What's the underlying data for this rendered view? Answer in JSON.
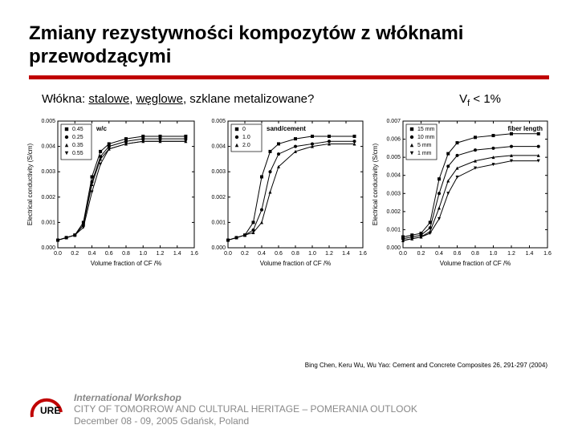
{
  "title_line1": "Zmiany rezystywności kompozytów z włóknami",
  "title_line2": "przewodzącymi",
  "fibers_prefix": "Włókna: ",
  "fibers_u1": "stalowe",
  "fibers_sep": ", ",
  "fibers_u2": "węglowe",
  "fibers_rest": ", szklane metalizowane?",
  "vf_label": "V",
  "vf_sub": "f",
  "vf_rest": " < 1%",
  "ylabel": "Electrical conductivity (S/cm)",
  "xlabel": "Volume fraction of CF /%",
  "chart1": {
    "inner_label": "w/c",
    "legend": [
      {
        "sym": "square",
        "label": "0.45"
      },
      {
        "sym": "circle",
        "label": "0.25"
      },
      {
        "sym": "triangle",
        "label": "0.35"
      },
      {
        "sym": "invtri",
        "label": "0.55"
      }
    ],
    "yticks": [
      "0.000",
      "0.001",
      "0.002",
      "0.003",
      "0.004",
      "0.005"
    ],
    "ymax": 0.005,
    "xticks": [
      "0.0",
      "0.2",
      "0.4",
      "0.6",
      "0.8",
      "1.0",
      "1.2",
      "1.4",
      "1.6"
    ],
    "xmax": 1.6,
    "series": [
      {
        "sym": "square",
        "pts": [
          [
            0.0,
            0.0003
          ],
          [
            0.1,
            0.0004
          ],
          [
            0.2,
            0.0005
          ],
          [
            0.3,
            0.001
          ],
          [
            0.4,
            0.0028
          ],
          [
            0.5,
            0.0038
          ],
          [
            0.6,
            0.0041
          ],
          [
            0.8,
            0.0043
          ],
          [
            1.0,
            0.0044
          ],
          [
            1.2,
            0.0044
          ],
          [
            1.5,
            0.0044
          ]
        ]
      },
      {
        "sym": "circle",
        "pts": [
          [
            0.0,
            0.0003
          ],
          [
            0.1,
            0.0004
          ],
          [
            0.2,
            0.0005
          ],
          [
            0.3,
            0.0009
          ],
          [
            0.4,
            0.0026
          ],
          [
            0.5,
            0.0036
          ],
          [
            0.6,
            0.004
          ],
          [
            0.8,
            0.0042
          ],
          [
            1.0,
            0.0043
          ],
          [
            1.2,
            0.0043
          ],
          [
            1.5,
            0.0043
          ]
        ]
      },
      {
        "sym": "triangle",
        "pts": [
          [
            0.0,
            0.0003
          ],
          [
            0.1,
            0.0004
          ],
          [
            0.2,
            0.0005
          ],
          [
            0.3,
            0.0009
          ],
          [
            0.4,
            0.0025
          ],
          [
            0.5,
            0.0035
          ],
          [
            0.6,
            0.0039
          ],
          [
            0.8,
            0.0041
          ],
          [
            1.0,
            0.0042
          ],
          [
            1.2,
            0.0042
          ],
          [
            1.5,
            0.0042
          ]
        ]
      },
      {
        "sym": "invtri",
        "pts": [
          [
            0.0,
            0.0003
          ],
          [
            0.1,
            0.0004
          ],
          [
            0.2,
            0.0005
          ],
          [
            0.3,
            0.0008
          ],
          [
            0.4,
            0.0022
          ],
          [
            0.5,
            0.0033
          ],
          [
            0.6,
            0.0039
          ],
          [
            0.8,
            0.0041
          ],
          [
            1.0,
            0.0042
          ],
          [
            1.2,
            0.0042
          ],
          [
            1.5,
            0.0042
          ]
        ]
      }
    ]
  },
  "chart2": {
    "inner_label": "sand/cement",
    "legend": [
      {
        "sym": "square",
        "label": "0"
      },
      {
        "sym": "circle",
        "label": "1.0"
      },
      {
        "sym": "triangle",
        "label": "2.0"
      }
    ],
    "yticks": [
      "0.000",
      "0.001",
      "0.002",
      "0.003",
      "0.004",
      "0.005"
    ],
    "ymax": 0.005,
    "xticks": [
      "0.0",
      "0.2",
      "0.4",
      "0.6",
      "0.8",
      "1.0",
      "1.2",
      "1.4",
      "1.6"
    ],
    "xmax": 1.6,
    "series": [
      {
        "sym": "square",
        "pts": [
          [
            0.0,
            0.0003
          ],
          [
            0.1,
            0.0004
          ],
          [
            0.2,
            0.0005
          ],
          [
            0.3,
            0.001
          ],
          [
            0.4,
            0.0028
          ],
          [
            0.5,
            0.0038
          ],
          [
            0.6,
            0.0041
          ],
          [
            0.8,
            0.0043
          ],
          [
            1.0,
            0.0044
          ],
          [
            1.2,
            0.0044
          ],
          [
            1.5,
            0.0044
          ]
        ]
      },
      {
        "sym": "circle",
        "pts": [
          [
            0.0,
            0.0003
          ],
          [
            0.1,
            0.0004
          ],
          [
            0.2,
            0.0005
          ],
          [
            0.3,
            0.0007
          ],
          [
            0.4,
            0.0015
          ],
          [
            0.5,
            0.003
          ],
          [
            0.6,
            0.0037
          ],
          [
            0.8,
            0.004
          ],
          [
            1.0,
            0.0041
          ],
          [
            1.2,
            0.0042
          ],
          [
            1.5,
            0.0042
          ]
        ]
      },
      {
        "sym": "triangle",
        "pts": [
          [
            0.0,
            0.0003
          ],
          [
            0.1,
            0.0004
          ],
          [
            0.2,
            0.0005
          ],
          [
            0.3,
            0.0006
          ],
          [
            0.4,
            0.001
          ],
          [
            0.5,
            0.0022
          ],
          [
            0.6,
            0.0032
          ],
          [
            0.8,
            0.0038
          ],
          [
            1.0,
            0.004
          ],
          [
            1.2,
            0.0041
          ],
          [
            1.5,
            0.0041
          ]
        ]
      }
    ]
  },
  "chart3": {
    "inner_label": "fiber length",
    "legend": [
      {
        "sym": "square",
        "label": "15 mm"
      },
      {
        "sym": "circle",
        "label": "10 mm"
      },
      {
        "sym": "triangle",
        "label": "5 mm"
      },
      {
        "sym": "invtri",
        "label": "1 mm"
      }
    ],
    "yticks": [
      "0.000",
      "0.001",
      "0.002",
      "0.003",
      "0.004",
      "0.005",
      "0.006",
      "0.007"
    ],
    "ymax": 0.007,
    "xticks": [
      "0.0",
      "0.2",
      "0.4",
      "0.6",
      "0.8",
      "1.0",
      "1.2",
      "1.4",
      "1.6"
    ],
    "xmax": 1.6,
    "series": [
      {
        "sym": "square",
        "pts": [
          [
            0.0,
            0.0006
          ],
          [
            0.1,
            0.0007
          ],
          [
            0.2,
            0.0008
          ],
          [
            0.3,
            0.0014
          ],
          [
            0.4,
            0.0038
          ],
          [
            0.5,
            0.0052
          ],
          [
            0.6,
            0.0058
          ],
          [
            0.8,
            0.0061
          ],
          [
            1.0,
            0.0062
          ],
          [
            1.2,
            0.0063
          ],
          [
            1.5,
            0.0063
          ]
        ]
      },
      {
        "sym": "circle",
        "pts": [
          [
            0.0,
            0.0005
          ],
          [
            0.1,
            0.0006
          ],
          [
            0.2,
            0.0007
          ],
          [
            0.3,
            0.0011
          ],
          [
            0.4,
            0.003
          ],
          [
            0.5,
            0.0045
          ],
          [
            0.6,
            0.0051
          ],
          [
            0.8,
            0.0054
          ],
          [
            1.0,
            0.0055
          ],
          [
            1.2,
            0.0056
          ],
          [
            1.5,
            0.0056
          ]
        ]
      },
      {
        "sym": "triangle",
        "pts": [
          [
            0.0,
            0.0004
          ],
          [
            0.1,
            0.0005
          ],
          [
            0.2,
            0.0006
          ],
          [
            0.3,
            0.0009
          ],
          [
            0.4,
            0.0022
          ],
          [
            0.5,
            0.0037
          ],
          [
            0.6,
            0.0044
          ],
          [
            0.8,
            0.0048
          ],
          [
            1.0,
            0.005
          ],
          [
            1.2,
            0.0051
          ],
          [
            1.5,
            0.0051
          ]
        ]
      },
      {
        "sym": "invtri",
        "pts": [
          [
            0.0,
            0.0004
          ],
          [
            0.1,
            0.0005
          ],
          [
            0.2,
            0.0006
          ],
          [
            0.3,
            0.0008
          ],
          [
            0.4,
            0.0016
          ],
          [
            0.5,
            0.003
          ],
          [
            0.6,
            0.0039
          ],
          [
            0.8,
            0.0044
          ],
          [
            1.0,
            0.0046
          ],
          [
            1.2,
            0.0048
          ],
          [
            1.5,
            0.0048
          ]
        ]
      }
    ]
  },
  "citation": "Bing Chen, Keru Wu, Wu Yao: Cement and Concrete Composites 26, 291-297 (2004)",
  "footer": {
    "line1": "International Workshop",
    "line2": "CITY OF TOMORROW AND CULTURAL HERITAGE – POMERANIA OUTLOOK",
    "line3": "December 08 - 09, 2005 Gdańsk, Poland"
  },
  "colors": {
    "redline": "#c00000",
    "logo_arc": "#c00000",
    "footer_text": "#888888",
    "axis": "#000000"
  }
}
